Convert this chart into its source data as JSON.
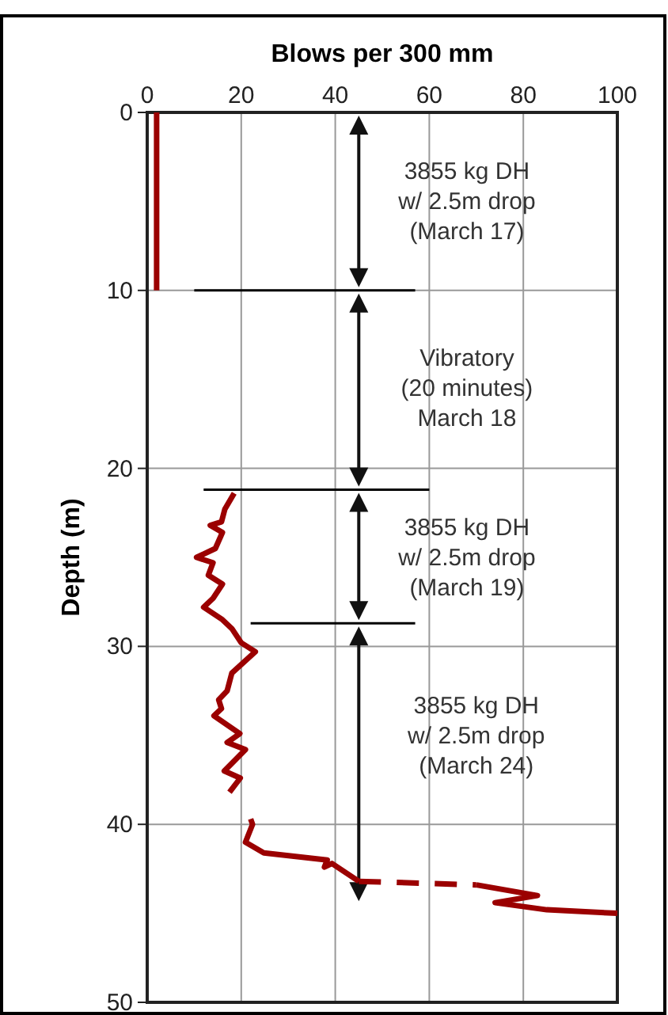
{
  "chart_data": {
    "type": "line",
    "xlabel": "Blows per 300 mm",
    "ylabel": "Depth (m)",
    "xlim": [
      0,
      100
    ],
    "xticks": [
      0,
      20,
      40,
      60,
      80,
      100
    ],
    "ylim": [
      50,
      0
    ],
    "yticks": [
      0,
      10,
      20,
      30,
      40,
      50
    ],
    "grid": true,
    "series": [
      {
        "color": "#9b0000",
        "x": [
          2,
          2
        ],
        "values": [
          0,
          10
        ]
      },
      {
        "color": "#9b0000",
        "x": [
          18.5,
          16.5,
          15.8,
          13.4,
          16,
          14.5,
          10.5,
          14,
          13,
          16,
          14,
          12,
          16,
          18,
          20,
          23,
          18,
          17,
          15.2,
          15.8,
          14.2,
          19.7,
          17,
          20.9,
          16.4,
          19.8,
          17.5
        ],
        "values": [
          21.4,
          22.3,
          23,
          23.2,
          23.6,
          24.5,
          25,
          25.3,
          26,
          26.5,
          27.3,
          27.8,
          28.5,
          29,
          29.8,
          30.3,
          31.5,
          32.5,
          33,
          33.5,
          33.9,
          34.9,
          35.4,
          35.8,
          37,
          37.4,
          38.2
        ]
      },
      {
        "color": "#9b0000",
        "x": [
          22,
          22.4,
          20.9,
          24.8,
          38.3,
          37.7,
          39.3,
          45
        ],
        "values": [
          39.7,
          40,
          41,
          41.6,
          42,
          42.4,
          42.2,
          43.2
        ]
      },
      {
        "color": "#9b0000",
        "line_style": "dashed",
        "x": [
          45,
          70
        ],
        "values": [
          43.2,
          43.4
        ]
      },
      {
        "color": "#9b0000",
        "x": [
          70,
          83,
          74,
          85,
          100
        ],
        "values": [
          43.4,
          44,
          44.4,
          44.8,
          45
        ]
      },
      {
        "color": "#000000",
        "x": [
          10,
          57
        ],
        "values": [
          10,
          10
        ]
      },
      {
        "color": "#000000",
        "x": [
          12,
          60
        ],
        "values": [
          21.2,
          21.2
        ]
      },
      {
        "color": "#000000",
        "x": [
          22,
          57
        ],
        "values": [
          28.7,
          28.7
        ]
      }
    ],
    "annotations": [
      "3855 kg DH\nw/ 2.5m drop\n(March 17)",
      "Vibratory\n(20 minutes)\nMarch 18",
      "3855 kg DH\nw/ 2.5m drop\n(March 19)",
      "3855 kg DH\nw/ 2.5m drop\n(March 24)"
    ]
  }
}
